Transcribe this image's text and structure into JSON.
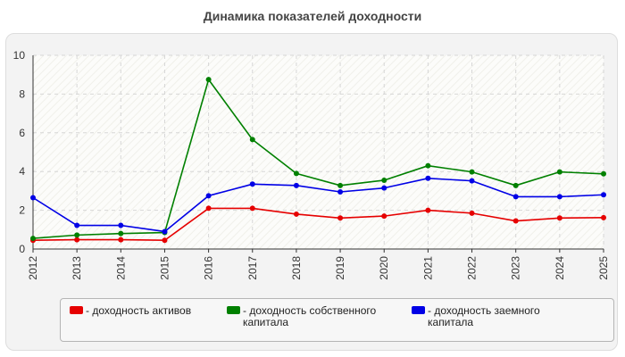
{
  "chart_title": "Динамика показателей доходности",
  "chart_data": {
    "type": "line",
    "title": "Динамика показателей доходности",
    "xlabel": "",
    "ylabel": "",
    "categories": [
      "2012",
      "2013",
      "2014",
      "2015",
      "2016",
      "2017",
      "2018",
      "2019",
      "2020",
      "2021",
      "2022",
      "2023",
      "2024",
      "2025"
    ],
    "ylim": [
      0,
      10
    ],
    "yticks": [
      0,
      2,
      4,
      6,
      8,
      10
    ],
    "grid": true,
    "legend_position": "bottom",
    "series": [
      {
        "name": "- доходность активов",
        "color": "#e60000",
        "values": [
          0.45,
          0.48,
          0.48,
          0.45,
          2.1,
          2.1,
          1.8,
          1.6,
          1.7,
          2.0,
          1.85,
          1.45,
          1.6,
          1.62
        ]
      },
      {
        "name": "- доходность собственного капитала",
        "color": "#008000",
        "values": [
          0.55,
          0.72,
          0.8,
          0.85,
          8.75,
          5.65,
          3.9,
          3.28,
          3.55,
          4.3,
          3.98,
          3.28,
          3.98,
          3.88
        ]
      },
      {
        "name": "- доходность заемного капитала",
        "color": "#0000e6",
        "values": [
          2.65,
          1.22,
          1.22,
          0.9,
          2.75,
          3.35,
          3.28,
          2.95,
          3.15,
          3.65,
          3.52,
          2.7,
          2.7,
          2.8
        ]
      }
    ]
  }
}
